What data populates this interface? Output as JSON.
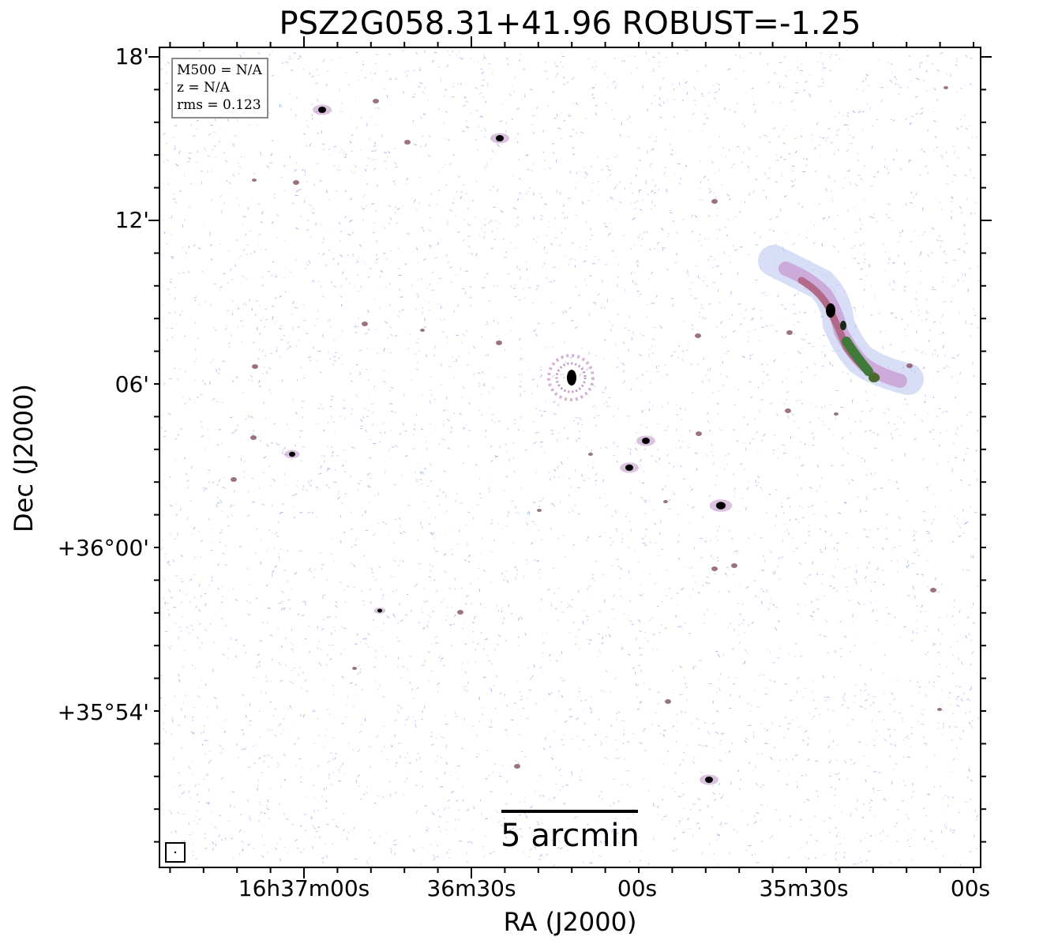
{
  "figure": {
    "title": "PSZ2G058.31+41.96 ROBUST=-1.25"
  },
  "axes": {
    "xlabel": "RA (J2000)",
    "ylabel": "Dec (J2000)",
    "x_ticks": [
      "16h37m00s",
      "36m30s",
      "00s",
      "35m30s",
      "00s"
    ],
    "y_ticks": [
      "18'",
      "12'",
      "06'",
      "+36°00'",
      "+35°54'"
    ]
  },
  "info_box": {
    "m500": "M500 = N/A",
    "z": "z = N/A",
    "rms": "rms = 0.123"
  },
  "scale_bar": {
    "label": "5 arcmin"
  },
  "colors": {
    "noise": "#7f9ad6",
    "faint_emission": "#b07ab8",
    "medium_emission": "#8a5a6a",
    "bright_emission": "#3f7a3a",
    "peak_emission": "#000000"
  }
}
